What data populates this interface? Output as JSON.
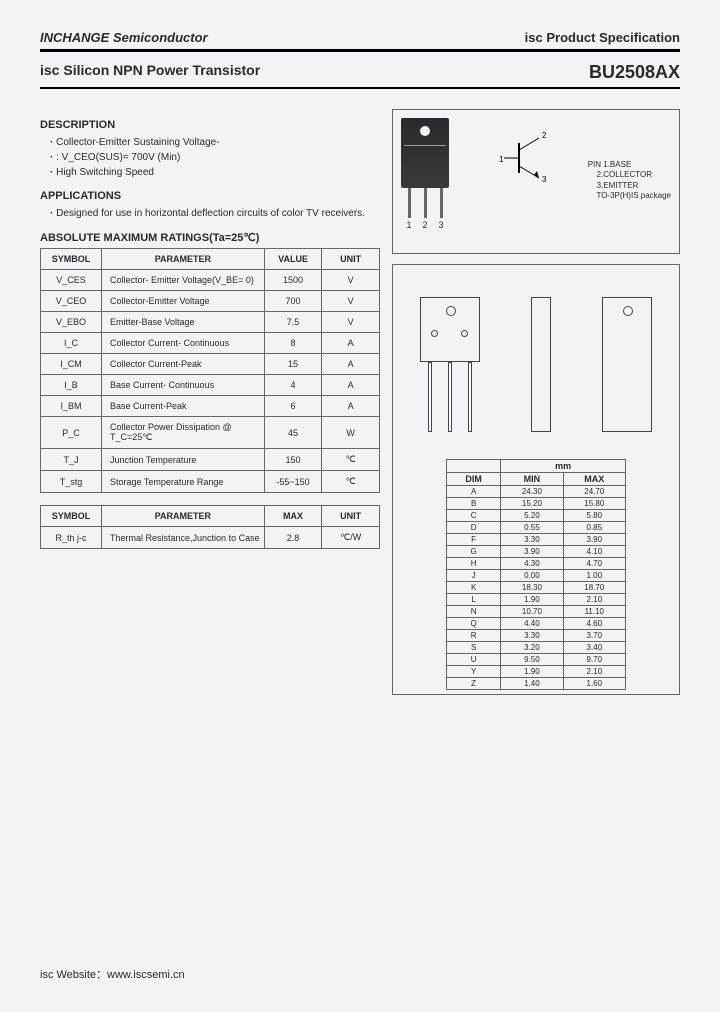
{
  "header": {
    "company": "INCHANGE Semiconductor",
    "spec": "isc Product Specification",
    "product": "isc Silicon NPN Power Transistor",
    "part": "BU2508AX"
  },
  "description": {
    "title": "DESCRIPTION",
    "items": [
      "Collector-Emitter Sustaining Voltage-",
      ": V_CEO(SUS)= 700V (Min)",
      "High Switching Speed"
    ]
  },
  "applications": {
    "title": "APPLICATIONS",
    "items": [
      "Designed for use in horizontal deflection circuits of color TV receivers."
    ]
  },
  "ratings_title": "ABSOLUTE MAXIMUM RATINGS(Ta=25℃)",
  "ratings": {
    "headers": [
      "SYMBOL",
      "PARAMETER",
      "VALUE",
      "UNIT"
    ],
    "rows": [
      [
        "V_CES",
        "Collector- Emitter Voltage(V_BE= 0)",
        "1500",
        "V"
      ],
      [
        "V_CEO",
        "Collector-Emitter Voltage",
        "700",
        "V"
      ],
      [
        "V_EBO",
        "Emitter-Base Voltage",
        "7.5",
        "V"
      ],
      [
        "I_C",
        "Collector Current- Continuous",
        "8",
        "A"
      ],
      [
        "I_CM",
        "Collector Current-Peak",
        "15",
        "A"
      ],
      [
        "I_B",
        "Base Current- Continuous",
        "4",
        "A"
      ],
      [
        "I_BM",
        "Base Current-Peak",
        "6",
        "A"
      ],
      [
        "P_C",
        "Collector Power Dissipation @ T_C=25℃",
        "45",
        "W"
      ],
      [
        "T_J",
        "Junction Temperature",
        "150",
        "℃"
      ],
      [
        "T_stg",
        "Storage Temperature Range",
        "-55~150",
        "℃"
      ]
    ]
  },
  "thermal": {
    "headers": [
      "SYMBOL",
      "PARAMETER",
      "MAX",
      "UNIT"
    ],
    "rows": [
      [
        "R_th j-c",
        "Thermal Resistance,Junction to Case",
        "2.8",
        "℃/W"
      ]
    ]
  },
  "package": {
    "pins": [
      "1",
      "2",
      "3"
    ],
    "pin_desc": "PIN 1.BASE\n    2.COLLECTOR\n    3.EMITTER\n    TO-3P(H)IS package",
    "sym_labels": [
      "1",
      "2",
      "3"
    ]
  },
  "dimensions": {
    "unit_header": "mm",
    "headers": [
      "DIM",
      "MIN",
      "MAX"
    ],
    "rows": [
      [
        "A",
        "24.30",
        "24.70"
      ],
      [
        "B",
        "15.20",
        "15.80"
      ],
      [
        "C",
        "5.20",
        "5.80"
      ],
      [
        "D",
        "0.55",
        "0.85"
      ],
      [
        "F",
        "3.30",
        "3.90"
      ],
      [
        "G",
        "3.90",
        "4.10"
      ],
      [
        "H",
        "4.30",
        "4.70"
      ],
      [
        "J",
        "0.00",
        "1.00"
      ],
      [
        "K",
        "18.30",
        "18.70"
      ],
      [
        "L",
        "1.90",
        "2.10"
      ],
      [
        "N",
        "10.70",
        "11.10"
      ],
      [
        "Q",
        "4.40",
        "4.60"
      ],
      [
        "R",
        "3.30",
        "3.70"
      ],
      [
        "S",
        "3.20",
        "3.40"
      ],
      [
        "U",
        "9.50",
        "9.70"
      ],
      [
        "Y",
        "1.90",
        "2.10"
      ],
      [
        "Z",
        "1.40",
        "1.60"
      ]
    ]
  },
  "footer": "isc Website：www.iscsemi.cn"
}
